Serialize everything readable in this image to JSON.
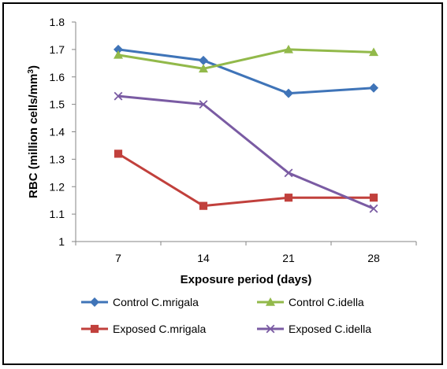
{
  "chart_data": {
    "type": "line",
    "title": "",
    "xlabel": "Exposure period (days)",
    "ylabel_main": "RBC (million cells/mm",
    "ylabel_sup": "3",
    "ylabel_close": ")",
    "categories": [
      "7",
      "14",
      "21",
      "28"
    ],
    "ylim": [
      1,
      1.8
    ],
    "yticks": [
      "1",
      "1.1",
      "1.2",
      "1.3",
      "1.4",
      "1.5",
      "1.6",
      "1.7",
      "1.8"
    ],
    "grid": false,
    "legend_position": "bottom",
    "series": [
      {
        "name": "Control C.mrigala",
        "values": [
          1.7,
          1.66,
          1.54,
          1.56
        ],
        "color": "#3f74b8",
        "marker": "diamond"
      },
      {
        "name": "Control C.idella",
        "values": [
          1.68,
          1.63,
          1.7,
          1.69
        ],
        "color": "#92b94a",
        "marker": "triangle"
      },
      {
        "name": "Exposed C.mrigala",
        "values": [
          1.32,
          1.13,
          1.16,
          1.16
        ],
        "color": "#c1403c",
        "marker": "square"
      },
      {
        "name": "Exposed C.idella",
        "values": [
          1.53,
          1.5,
          1.25,
          1.12
        ],
        "color": "#7a5ba3",
        "marker": "x"
      }
    ]
  }
}
